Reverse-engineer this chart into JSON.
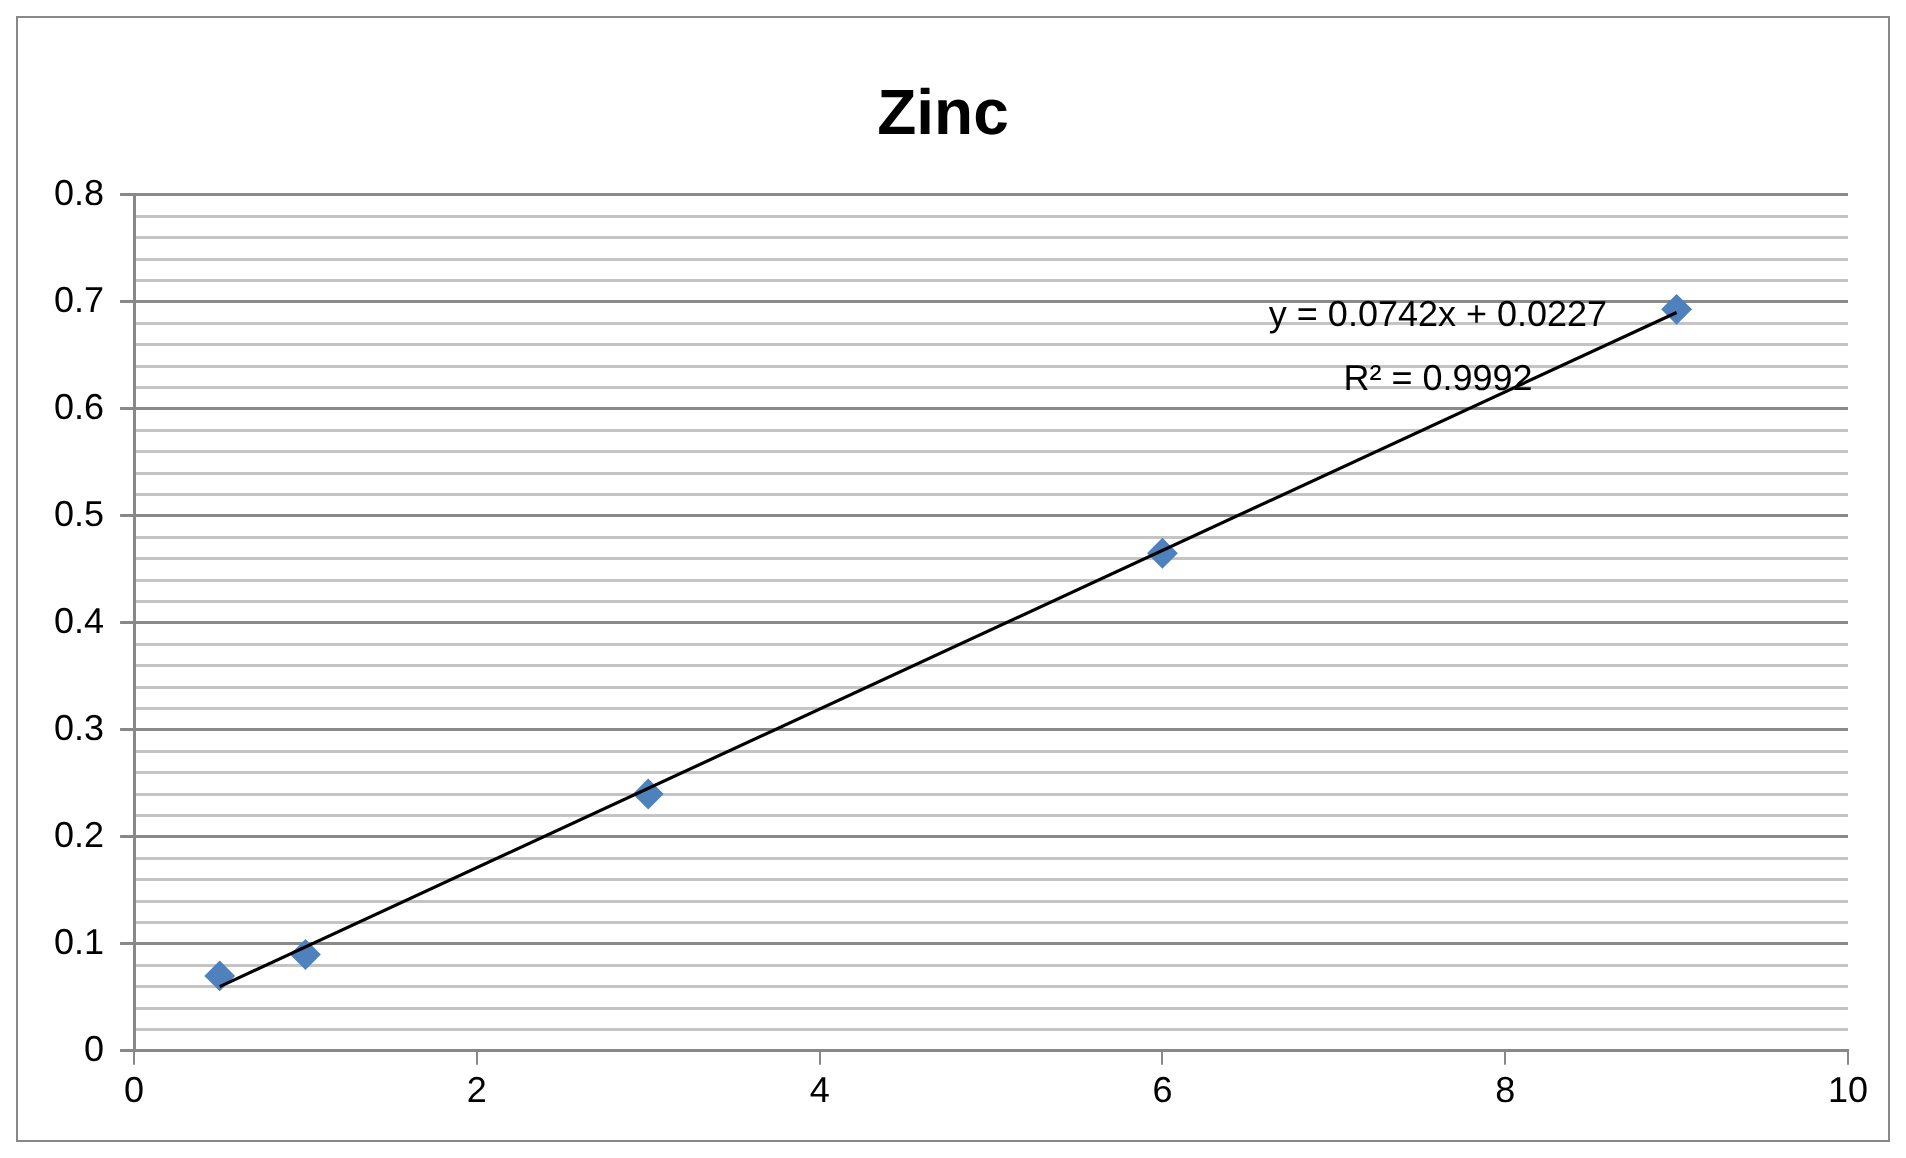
{
  "chart_data": {
    "type": "scatter",
    "title": "Zinc",
    "series": [
      {
        "color": "#4f81bd",
        "x": [
          0.5,
          1,
          3,
          6,
          9
        ],
        "values": [
          0.07,
          0.09,
          0.24,
          0.465,
          0.693
        ],
        "marker": "diamond"
      },
      {
        "type": "line",
        "color": "#000000",
        "x": [
          0.5,
          9
        ],
        "values": [
          0.06,
          0.69
        ],
        "marker": "none",
        "line_style": "solid"
      }
    ],
    "xlim": [
      0,
      10
    ],
    "xticks": [
      0,
      2,
      4,
      6,
      8,
      10
    ],
    "ylim": [
      0,
      0.8
    ],
    "yticks": [
      0,
      {
        "value": 0.02,
        "label": null
      },
      {
        "value": 0.04,
        "label": null
      },
      {
        "value": 0.06,
        "label": null
      },
      {
        "value": 0.08,
        "label": null
      },
      0.1,
      {
        "value": 0.12,
        "label": null
      },
      {
        "value": 0.14,
        "label": null
      },
      {
        "value": 0.16,
        "label": null
      },
      {
        "value": 0.18,
        "label": null
      },
      0.2,
      {
        "value": 0.22,
        "label": null
      },
      {
        "value": 0.24,
        "label": null
      },
      {
        "value": 0.26,
        "label": null
      },
      {
        "value": 0.28,
        "label": null
      },
      0.3,
      {
        "value": 0.32,
        "label": null
      },
      {
        "value": 0.34,
        "label": null
      },
      {
        "value": 0.36,
        "label": null
      },
      {
        "value": 0.38,
        "label": null
      },
      0.4,
      {
        "value": 0.42,
        "label": null
      },
      {
        "value": 0.44,
        "label": null
      },
      {
        "value": 0.46,
        "label": null
      },
      {
        "value": 0.48,
        "label": null
      },
      0.5,
      {
        "value": 0.52,
        "label": null
      },
      {
        "value": 0.54,
        "label": null
      },
      {
        "value": 0.56,
        "label": null
      },
      {
        "value": 0.58,
        "label": null
      },
      0.6,
      {
        "value": 0.62,
        "label": null
      },
      {
        "value": 0.64,
        "label": null
      },
      {
        "value": 0.66,
        "label": null
      },
      {
        "value": 0.68,
        "label": null
      },
      0.7,
      {
        "value": 0.72,
        "label": null
      },
      {
        "value": 0.74,
        "label": null
      },
      {
        "value": 0.76,
        "label": null
      },
      {
        "value": 0.78,
        "label": null
      },
      0.8
    ],
    "grid": "y",
    "legend": false,
    "annotations": [
      "y = 0.0742x + 0.0227",
      "R² = 0.9992"
    ]
  }
}
